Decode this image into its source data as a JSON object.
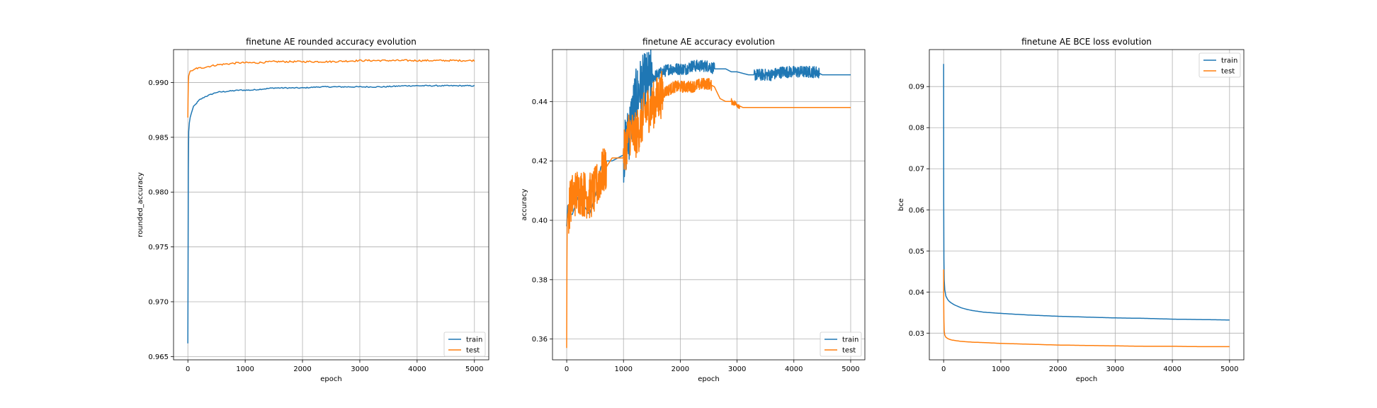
{
  "chart_data": [
    {
      "type": "line",
      "title": "finetune AE rounded accuracy evolution",
      "xlabel": "epoch",
      "ylabel": "rounded_accuracy",
      "xlim": [
        -250,
        5250
      ],
      "ylim": [
        0.9647,
        0.993
      ],
      "xticks": [
        0,
        1000,
        2000,
        3000,
        4000,
        5000
      ],
      "xtick_labels": [
        "0",
        "1000",
        "2000",
        "3000",
        "4000",
        "5000"
      ],
      "yticks": [
        0.965,
        0.97,
        0.975,
        0.98,
        0.985,
        0.99
      ],
      "ytick_labels": [
        "0.965",
        "0.970",
        "0.975",
        "0.980",
        "0.985",
        "0.990"
      ],
      "grid": true,
      "legend_position": "lower-right",
      "series": [
        {
          "name": "train",
          "color": "#1f77b4",
          "x": [
            0,
            3,
            8,
            15,
            25,
            40,
            60,
            80,
            100,
            150,
            200,
            300,
            400,
            500,
            700,
            900,
            1100,
            1300,
            1500,
            1700,
            2000,
            2300,
            2600,
            3000,
            3400,
            3800,
            4200,
            4600,
            5000
          ],
          "y": [
            0.9662,
            0.9725,
            0.982,
            0.9855,
            0.9863,
            0.9868,
            0.9872,
            0.9875,
            0.9878,
            0.9881,
            0.9884,
            0.9887,
            0.9889,
            0.9891,
            0.9892,
            0.9893,
            0.9893,
            0.9894,
            0.9895,
            0.9895,
            0.9895,
            0.9896,
            0.9896,
            0.9896,
            0.9896,
            0.9897,
            0.9897,
            0.9897,
            0.9897
          ],
          "noise": 5e-05
        },
        {
          "name": "test",
          "color": "#ff7f0e",
          "x": [
            0,
            3,
            8,
            15,
            25,
            40,
            60,
            100,
            150,
            200,
            300,
            400,
            500,
            700,
            900,
            1200,
            1500,
            2000,
            2500,
            3000,
            3500,
            4000,
            4500,
            5000
          ],
          "y": [
            0.9868,
            0.9885,
            0.99,
            0.9906,
            0.9908,
            0.991,
            0.9911,
            0.9911,
            0.9913,
            0.9913,
            0.9914,
            0.9915,
            0.9916,
            0.9917,
            0.9918,
            0.9918,
            0.9919,
            0.9919,
            0.9919,
            0.992,
            0.992,
            0.992,
            0.992,
            0.992
          ],
          "noise": 8e-05
        }
      ]
    },
    {
      "type": "line",
      "title": "finetune AE accuracy evolution",
      "xlabel": "epoch",
      "ylabel": "accuracy",
      "xlim": [
        -250,
        5250
      ],
      "ylim": [
        0.353,
        0.4575
      ],
      "xticks": [
        0,
        1000,
        2000,
        3000,
        4000,
        5000
      ],
      "xtick_labels": [
        "0",
        "1000",
        "2000",
        "3000",
        "4000",
        "5000"
      ],
      "yticks": [
        0.36,
        0.38,
        0.4,
        0.42,
        0.44
      ],
      "ytick_labels": [
        "0.36",
        "0.38",
        "0.40",
        "0.42",
        "0.44"
      ],
      "grid": true,
      "legend_position": "lower-right",
      "series": [
        {
          "name": "train",
          "color": "#1f77b4",
          "x": [
            0,
            20,
            40,
            100,
            200,
            300,
            400,
            500,
            550,
            600,
            700,
            800,
            900,
            1000,
            1100,
            1200,
            1300,
            1400,
            1500,
            1600,
            1700,
            1800,
            1900,
            2000,
            2100,
            2200,
            2300,
            2400,
            2500,
            2600,
            2700,
            2800,
            2900,
            3000,
            3200,
            3400,
            3600,
            3800,
            4000,
            4200,
            4400,
            4500,
            4700,
            5000
          ],
          "y": [
            0.398,
            0.405,
            0.402,
            0.402,
            0.408,
            0.405,
            0.402,
            0.408,
            0.412,
            0.418,
            0.42,
            0.42,
            0.421,
            0.422,
            0.43,
            0.44,
            0.445,
            0.447,
            0.448,
            0.449,
            0.45,
            0.451,
            0.451,
            0.451,
            0.451,
            0.452,
            0.452,
            0.452,
            0.452,
            0.451,
            0.451,
            0.451,
            0.45,
            0.45,
            0.449,
            0.449,
            0.449,
            0.45,
            0.45,
            0.45,
            0.45,
            0.449,
            0.449,
            0.449
          ],
          "jitter": [
            [
              1000,
              1500,
              0.01
            ],
            [
              1500,
              2600,
              0.002
            ],
            [
              3300,
              4450,
              0.002
            ]
          ]
        },
        {
          "name": "test",
          "color": "#ff7f0e",
          "x": [
            0,
            5,
            10,
            20,
            50,
            100,
            200,
            300,
            400,
            500,
            600,
            700,
            800,
            900,
            1000,
            1100,
            1200,
            1300,
            1400,
            1500,
            1600,
            1700,
            1800,
            1900,
            2000,
            2200,
            2400,
            2500,
            2600,
            2700,
            2800,
            2900,
            3000,
            3100,
            3500,
            4000,
            4500,
            5000
          ],
          "y": [
            0.357,
            0.393,
            0.4,
            0.402,
            0.405,
            0.408,
            0.41,
            0.409,
            0.408,
            0.41,
            0.415,
            0.418,
            0.421,
            0.421,
            0.421,
            0.43,
            0.428,
            0.432,
            0.437,
            0.438,
            0.441,
            0.443,
            0.444,
            0.445,
            0.445,
            0.445,
            0.446,
            0.446,
            0.445,
            0.441,
            0.44,
            0.44,
            0.439,
            0.438,
            0.438,
            0.438,
            0.438,
            0.438
          ],
          "jitter": [
            [
              30,
              700,
              0.008
            ],
            [
              1000,
              1700,
              0.008
            ],
            [
              1700,
              2550,
              0.002
            ],
            [
              2900,
              3050,
              0.001
            ]
          ]
        }
      ]
    },
    {
      "type": "line",
      "title": "finetune AE BCE loss evolution",
      "xlabel": "epoch",
      "ylabel": "bce",
      "xlim": [
        -250,
        5250
      ],
      "ylim": [
        0.0235,
        0.099
      ],
      "xticks": [
        0,
        1000,
        2000,
        3000,
        4000,
        5000
      ],
      "xtick_labels": [
        "0",
        "1000",
        "2000",
        "3000",
        "4000",
        "5000"
      ],
      "yticks": [
        0.03,
        0.04,
        0.05,
        0.06,
        0.07,
        0.08,
        0.09
      ],
      "ytick_labels": [
        "0.03",
        "0.04",
        "0.05",
        "0.06",
        "0.07",
        "0.08",
        "0.09"
      ],
      "grid": true,
      "legend_position": "upper-right",
      "series": [
        {
          "name": "train",
          "color": "#1f77b4",
          "x": [
            0,
            2,
            5,
            10,
            20,
            40,
            70,
            100,
            150,
            200,
            300,
            400,
            500,
            700,
            1000,
            1500,
            2000,
            2500,
            3000,
            3500,
            4000,
            4500,
            5000
          ],
          "y": [
            0.0955,
            0.062,
            0.048,
            0.043,
            0.0405,
            0.039,
            0.0382,
            0.0377,
            0.0372,
            0.0368,
            0.0362,
            0.0358,
            0.0355,
            0.0351,
            0.0348,
            0.0344,
            0.0341,
            0.0339,
            0.0337,
            0.0336,
            0.0334,
            0.0333,
            0.0332
          ]
        },
        {
          "name": "test",
          "color": "#ff7f0e",
          "x": [
            0,
            2,
            5,
            10,
            20,
            40,
            70,
            100,
            150,
            200,
            300,
            400,
            500,
            700,
            1000,
            1500,
            2000,
            2500,
            3000,
            3500,
            4000,
            4500,
            5000
          ],
          "y": [
            0.0455,
            0.038,
            0.033,
            0.0305,
            0.0295,
            0.029,
            0.0287,
            0.0285,
            0.0283,
            0.0282,
            0.028,
            0.0279,
            0.0278,
            0.0277,
            0.0275,
            0.0273,
            0.0271,
            0.027,
            0.0269,
            0.0268,
            0.0268,
            0.0267,
            0.0267
          ]
        }
      ]
    }
  ]
}
